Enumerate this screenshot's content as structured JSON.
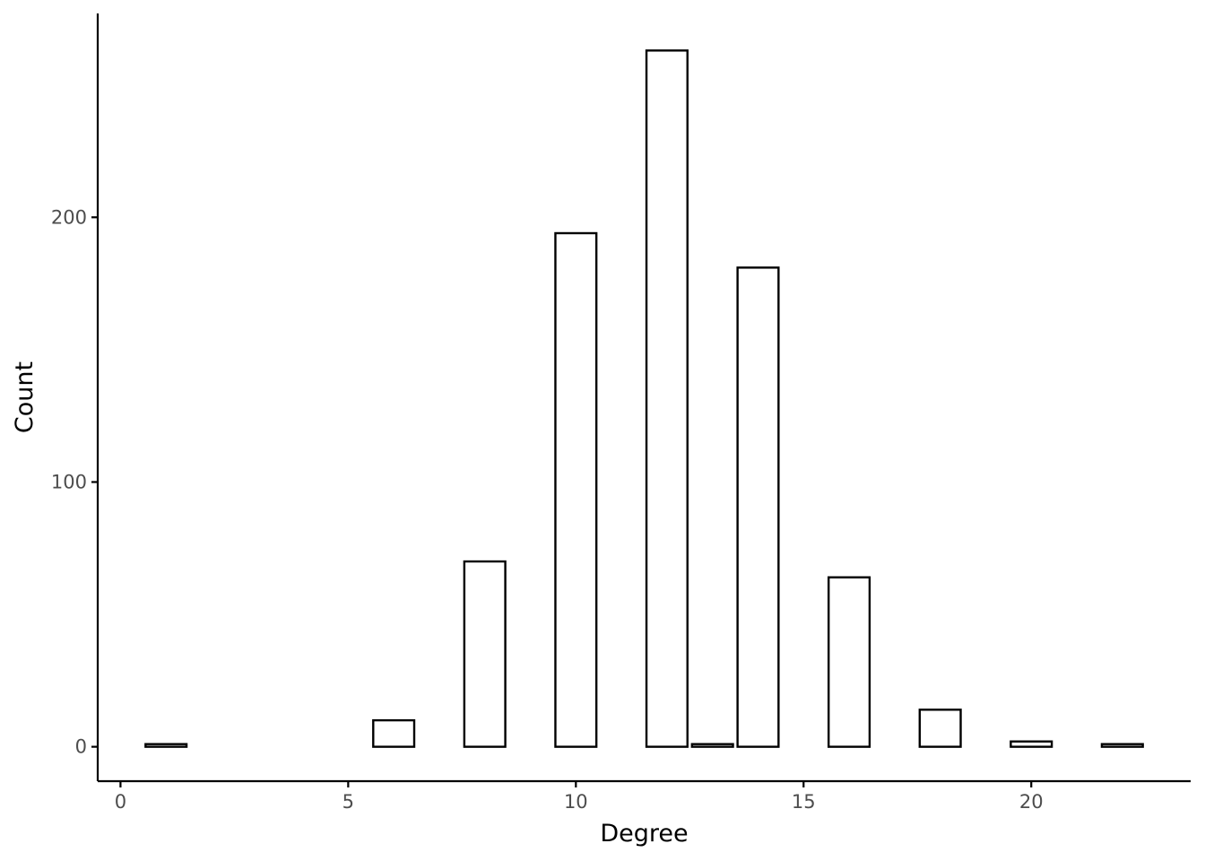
{
  "chart_data": {
    "type": "bar",
    "title": "",
    "xlabel": "Degree",
    "ylabel": "Count",
    "xlim": [
      -0.5,
      23.5
    ],
    "ylim": [
      -13,
      277
    ],
    "bar_width": 0.9,
    "x": [
      1,
      6,
      8,
      10,
      12,
      13,
      14,
      16,
      18,
      20,
      22
    ],
    "values": [
      1,
      10,
      70,
      194,
      263,
      1,
      181,
      64,
      14,
      2,
      1
    ],
    "x_ticks": [
      {
        "value": 0,
        "label": "0"
      },
      {
        "value": 5,
        "label": "5"
      },
      {
        "value": 10,
        "label": "10"
      },
      {
        "value": 15,
        "label": "15"
      },
      {
        "value": 20,
        "label": "20"
      }
    ],
    "y_ticks": [
      {
        "value": 0,
        "label": "0"
      },
      {
        "value": 100,
        "label": "100"
      },
      {
        "value": 200,
        "label": "200"
      }
    ],
    "grid": false,
    "legend": "none",
    "bar_fill": "#ffffff",
    "bar_stroke": "#000000",
    "tick_label_color": "#4d4d4d"
  }
}
